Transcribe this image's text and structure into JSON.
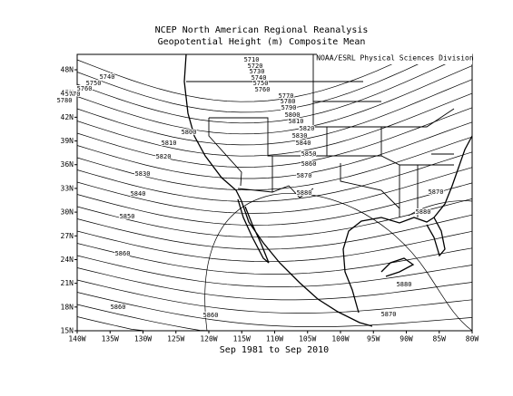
{
  "map": {
    "title": "NCEP North American Regional Reanalysis",
    "subtitle": "Geopotential Height (m) Composite Mean",
    "credit": "NOAA/ESRL Physical Sciences Division",
    "caption": "Sep 1981 to Sep 2010",
    "xticks": [
      "140W",
      "135W",
      "130W",
      "125W",
      "120W",
      "115W",
      "110W",
      "105W",
      "100W",
      "95W",
      "90W",
      "85W",
      "80W"
    ],
    "yticks": [
      "15N",
      "18N",
      "21N",
      "24N",
      "27N",
      "30N",
      "33N",
      "36N",
      "39N",
      "42N",
      "45N",
      "48N"
    ],
    "contour_labels": [
      "5710",
      "5720",
      "5730",
      "5740",
      "5750",
      "5760",
      "5740",
      "5750",
      "5760",
      "5770",
      "5780",
      "5770",
      "5780",
      "5790",
      "5800",
      "5810",
      "5820",
      "5830",
      "5840",
      "5850",
      "5860",
      "5870",
      "5880",
      "5800",
      "5810",
      "5820",
      "5830",
      "5840",
      "5850",
      "5860",
      "5860",
      "5860",
      "5880",
      "5870",
      "5870",
      "5880"
    ]
  }
}
